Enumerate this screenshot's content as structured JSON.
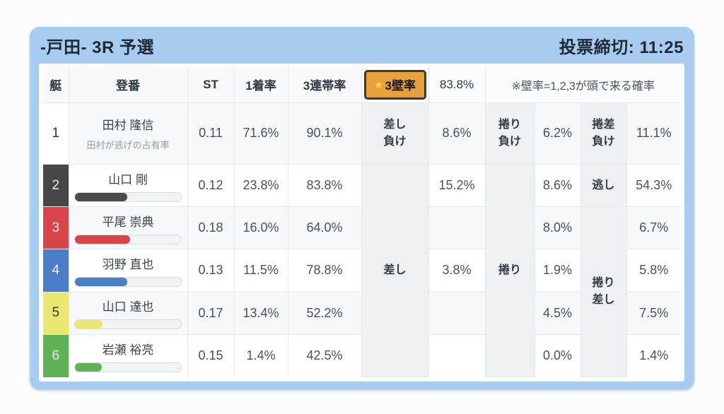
{
  "header": {
    "title": "-戸田- 3R 予選",
    "deadline": "投票締切: 11:25"
  },
  "columns": {
    "boat": "艇",
    "racer": "登番",
    "st": "ST",
    "first_rate": "1着率",
    "top3_rate": "3連帯率"
  },
  "wall": {
    "star": "★",
    "label": "3壁率",
    "value": "83.8%",
    "note": "※壁率=1,2,3が頭で来る確率",
    "box_color": "#e5a23c"
  },
  "kimarite": {
    "sashi_make": "差し\n負け",
    "makuri_make": "捲り\n負け",
    "makurizashi_make": "捲差\n負け",
    "sashi": "差し",
    "makuri": "捲り",
    "nigashi": "逃し",
    "makurizashi": "捲り\n差し"
  },
  "colors": {
    "accent_blue": "#a8ccf0",
    "boat_colors": [
      "#ffffff",
      "#474747",
      "#d9444b",
      "#4b7dc9",
      "#ebe871",
      "#5eb155"
    ]
  },
  "rows": [
    {
      "boat": "1",
      "name": "田村 隆信",
      "sub": "田村が逃げの占有率",
      "st": "0.11",
      "first": "71.6%",
      "top3": "90.1%",
      "v1": "8.6%",
      "v2": "6.2%",
      "v3": "11.1%"
    },
    {
      "boat": "2",
      "name": "山口 剛",
      "bar": 49,
      "st": "0.12",
      "first": "23.8%",
      "top3": "83.8%",
      "v1": "15.2%",
      "v2": "8.6%",
      "v3": "54.3%"
    },
    {
      "boat": "3",
      "name": "平尾 崇典",
      "bar": 52,
      "st": "0.18",
      "first": "16.0%",
      "top3": "64.0%",
      "v1": "",
      "v2": "8.0%",
      "v3": "6.7%"
    },
    {
      "boat": "4",
      "name": "羽野 直也",
      "bar": 49,
      "st": "0.13",
      "first": "11.5%",
      "top3": "78.8%",
      "v1": "3.8%",
      "v2": "1.9%",
      "v3": "5.8%"
    },
    {
      "boat": "5",
      "name": "山口 達也",
      "bar": 26,
      "st": "0.17",
      "first": "13.4%",
      "top3": "52.2%",
      "v1": "",
      "v2": "4.5%",
      "v3": "7.5%"
    },
    {
      "boat": "6",
      "name": "岩瀬 裕亮",
      "bar": 25,
      "st": "0.15",
      "first": "1.4%",
      "top3": "42.5%",
      "v1": "",
      "v2": "0.0%",
      "v3": "1.4%"
    }
  ]
}
